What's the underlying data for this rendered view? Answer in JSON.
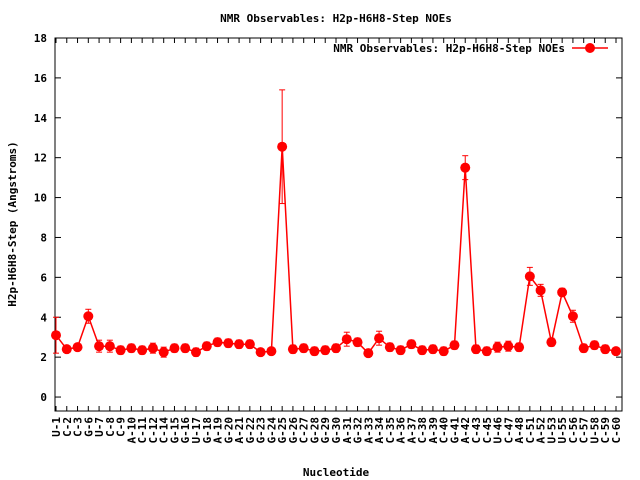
{
  "chart_data": {
    "type": "line",
    "title": "NMR Observables: H2p-H6H8-Step NOEs",
    "xlabel": "Nucleotide",
    "ylabel": "H2p-H6H8-Step (Angstroms)",
    "ylim": [
      -0.7,
      18
    ],
    "yticks": [
      0,
      2,
      4,
      6,
      8,
      10,
      12,
      14,
      16,
      18
    ],
    "grid": false,
    "legend_position": "top-right",
    "categories": [
      "U-1",
      "C-2",
      "C-3",
      "G-6",
      "U-7",
      "C-8",
      "C-9",
      "A-10",
      "C-11",
      "C-12",
      "C-14",
      "G-15",
      "G-16",
      "U-17",
      "G-18",
      "A-19",
      "G-20",
      "A-21",
      "G-22",
      "G-23",
      "G-24",
      "G-25",
      "G-26",
      "C-27",
      "G-28",
      "G-29",
      "G-30",
      "A-31",
      "G-32",
      "A-33",
      "A-34",
      "C-35",
      "A-36",
      "A-37",
      "C-38",
      "A-39",
      "C-40",
      "G-41",
      "A-42",
      "C-43",
      "C-45",
      "U-46",
      "C-47",
      "A-48",
      "C-51",
      "A-52",
      "U-53",
      "U-55",
      "C-56",
      "C-57",
      "U-58",
      "C-59",
      "C-60"
    ],
    "series": [
      {
        "name": "NMR Observables: H2p-H6H8-Step NOEs",
        "color": "#ff0000",
        "segments": [
          [
            {
              "x": "U-1",
              "y": 3.1,
              "err": 0.9
            },
            {
              "x": "C-2",
              "y": 2.4,
              "err": 0.15
            },
            {
              "x": "C-3",
              "y": 2.5,
              "err": 0.15
            },
            {
              "x": "G-6",
              "y": 4.05,
              "err": 0.35
            },
            {
              "x": "U-7",
              "y": 2.55,
              "err": 0.3
            },
            {
              "x": "C-8",
              "y": 2.55,
              "err": 0.3
            },
            {
              "x": "C-9",
              "y": 2.35,
              "err": 0.2
            },
            {
              "x": "A-10",
              "y": 2.45,
              "err": 0.2
            },
            {
              "x": "C-11",
              "y": 2.35,
              "err": 0.2
            },
            {
              "x": "C-12",
              "y": 2.45,
              "err": 0.25
            },
            {
              "x": "C-14",
              "y": 2.25,
              "err": 0.25
            },
            {
              "x": "G-15",
              "y": 2.45,
              "err": 0.2
            }
          ],
          [
            {
              "x": "G-16",
              "y": 2.45,
              "err": 0.2
            },
            {
              "x": "U-17",
              "y": 2.25,
              "err": 0.2
            },
            {
              "x": "G-18",
              "y": 2.55,
              "err": 0.2
            },
            {
              "x": "A-19",
              "y": 2.75,
              "err": 0.2
            },
            {
              "x": "G-20",
              "y": 2.7,
              "err": 0.2
            },
            {
              "x": "A-21",
              "y": 2.65,
              "err": 0.2
            },
            {
              "x": "G-22",
              "y": 2.65,
              "err": 0.2
            },
            {
              "x": "G-23",
              "y": 2.25,
              "err": 0.15
            },
            {
              "x": "G-24",
              "y": 2.3,
              "err": 0.15
            },
            {
              "x": "G-25",
              "y": 12.55,
              "err": 2.85
            },
            {
              "x": "G-26",
              "y": 2.4,
              "err": 0.2
            },
            {
              "x": "C-27",
              "y": 2.45,
              "err": 0.2
            },
            {
              "x": "G-28",
              "y": 2.3,
              "err": 0.2
            },
            {
              "x": "G-29",
              "y": 2.35,
              "err": 0.2
            },
            {
              "x": "G-30",
              "y": 2.45,
              "err": 0.2
            },
            {
              "x": "A-31",
              "y": 2.9,
              "err": 0.35
            },
            {
              "x": "G-32",
              "y": 2.75,
              "err": 0.2
            },
            {
              "x": "A-33",
              "y": 2.2,
              "err": 0.15
            },
            {
              "x": "A-34",
              "y": 2.95,
              "err": 0.35
            },
            {
              "x": "C-35",
              "y": 2.5,
              "err": 0.2
            },
            {
              "x": "A-36",
              "y": 2.35,
              "err": 0.2
            },
            {
              "x": "A-37",
              "y": 2.65,
              "err": 0.2
            },
            {
              "x": "C-38",
              "y": 2.35,
              "err": 0.2
            },
            {
              "x": "A-39",
              "y": 2.4,
              "err": 0.2
            },
            {
              "x": "C-40",
              "y": 2.3,
              "err": 0.2
            },
            {
              "x": "G-41",
              "y": 2.6,
              "err": 0.2
            },
            {
              "x": "A-42",
              "y": 11.5,
              "err": 0.6
            },
            {
              "x": "C-43",
              "y": 2.4,
              "err": 0.2
            },
            {
              "x": "C-45",
              "y": 2.3,
              "err": 0.2
            },
            {
              "x": "U-46",
              "y": 2.5,
              "err": 0.25
            },
            {
              "x": "C-47",
              "y": 2.55,
              "err": 0.25
            },
            {
              "x": "A-48",
              "y": 2.5,
              "err": 0.2
            },
            {
              "x": "C-51",
              "y": 6.05,
              "err": 0.45
            },
            {
              "x": "A-52",
              "y": 5.35,
              "err": 0.3
            },
            {
              "x": "U-53",
              "y": 2.75,
              "err": 0.2
            },
            {
              "x": "U-55",
              "y": 5.25,
              "err": 0.2
            },
            {
              "x": "C-56",
              "y": 4.05,
              "err": 0.3
            },
            {
              "x": "C-57",
              "y": 2.45,
              "err": 0.2
            },
            {
              "x": "U-58",
              "y": 2.6,
              "err": 0.2
            },
            {
              "x": "C-59",
              "y": 2.4,
              "err": 0.2
            },
            {
              "x": "C-60",
              "y": 2.3,
              "err": 0.15
            }
          ]
        ]
      }
    ]
  }
}
